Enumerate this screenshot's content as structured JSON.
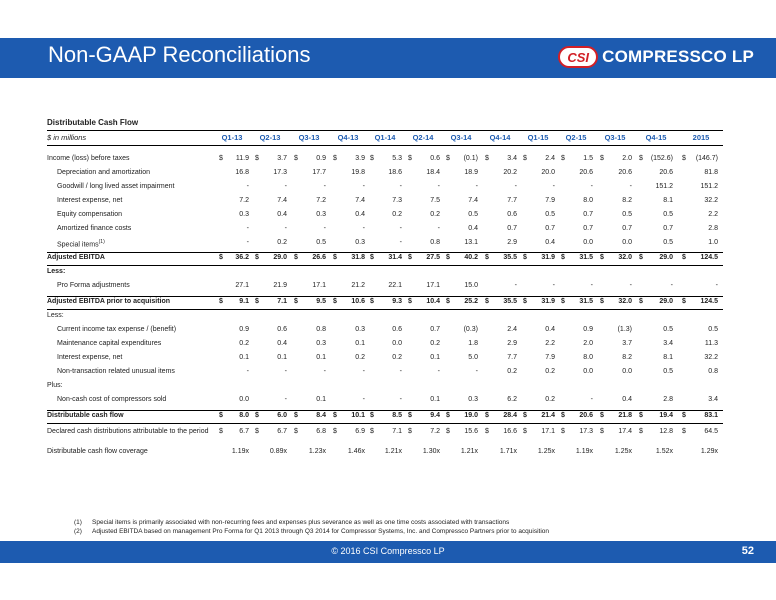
{
  "header": {
    "title": "Non-GAAP Reconciliations",
    "logo_badge": "CSI",
    "logo_name": "COMPRESSCO LP",
    "logo_tm": "LP"
  },
  "table": {
    "title": "Distributable Cash Flow",
    "unit": "$ in millions",
    "columns": [
      "Q1-13",
      "Q2-13",
      "Q3-13",
      "Q4-13",
      "Q1-14",
      "Q2-14",
      "Q3-14",
      "Q4-14",
      "Q1-15",
      "Q2-15",
      "Q3-15",
      "Q4-15",
      "2015"
    ],
    "rows": [
      {
        "label": "Income (loss) before taxes",
        "values": [
          "11.9",
          "3.7",
          "0.9",
          "3.9",
          "5.3",
          "0.6",
          "(0.1)",
          "3.4",
          "2.4",
          "1.5",
          "2.0",
          "(152.6)",
          "(146.7)"
        ],
        "dollar": true
      },
      {
        "label": "Depreciation and amortization",
        "values": [
          "16.8",
          "17.3",
          "17.7",
          "19.8",
          "18.6",
          "18.4",
          "18.9",
          "20.2",
          "20.0",
          "20.6",
          "20.6",
          "20.6",
          "81.8"
        ],
        "indent": true
      },
      {
        "label": "Goodwill / long lived asset impairment",
        "values": [
          "-",
          "-",
          "-",
          "-",
          "-",
          "-",
          "-",
          "-",
          "-",
          "-",
          "-",
          "151.2",
          "151.2"
        ],
        "indent": true
      },
      {
        "label": "Interest expense, net",
        "values": [
          "7.2",
          "7.4",
          "7.2",
          "7.4",
          "7.3",
          "7.5",
          "7.4",
          "7.7",
          "7.9",
          "8.0",
          "8.2",
          "8.1",
          "32.2"
        ],
        "indent": true
      },
      {
        "label": "Equity compensation",
        "values": [
          "0.3",
          "0.4",
          "0.3",
          "0.4",
          "0.2",
          "0.2",
          "0.5",
          "0.6",
          "0.5",
          "0.7",
          "0.5",
          "0.5",
          "2.2"
        ],
        "indent": true
      },
      {
        "label": "Amortized finance costs",
        "values": [
          "-",
          "-",
          "-",
          "-",
          "-",
          "-",
          "0.4",
          "0.7",
          "0.7",
          "0.7",
          "0.7",
          "0.7",
          "2.8"
        ],
        "indent": true
      },
      {
        "label": "Special items",
        "sup": "(1)",
        "values": [
          "-",
          "0.2",
          "0.5",
          "0.3",
          "-",
          "0.8",
          "13.1",
          "2.9",
          "0.4",
          "0.0",
          "0.0",
          "0.5",
          "1.0"
        ],
        "indent": true
      },
      {
        "label": "Adjusted EBITDA",
        "values": [
          "36.2",
          "29.0",
          "26.6",
          "31.8",
          "31.4",
          "27.5",
          "40.2",
          "35.5",
          "31.9",
          "31.5",
          "32.0",
          "29.0",
          "124.5"
        ],
        "dollar": true,
        "bold": true,
        "box": true
      },
      {
        "label": "Less:",
        "values": [],
        "bold": true
      },
      {
        "label": "Pro Forma adjustments",
        "values": [
          "27.1",
          "21.9",
          "17.1",
          "21.2",
          "22.1",
          "17.1",
          "15.0",
          "-",
          "-",
          "-",
          "-",
          "-",
          "-"
        ],
        "indent": true
      },
      {
        "label": "Adjusted EBITDA prior to acquisition",
        "values": [
          "9.1",
          "7.1",
          "9.5",
          "10.6",
          "9.3",
          "10.4",
          "25.2",
          "35.5",
          "31.9",
          "31.5",
          "32.0",
          "29.0",
          "124.5"
        ],
        "dollar": true,
        "bold": true,
        "box": true
      },
      {
        "label": "Less:",
        "values": []
      },
      {
        "label": "Current income tax expense / (benefit)",
        "values": [
          "0.9",
          "0.6",
          "0.8",
          "0.3",
          "0.6",
          "0.7",
          "(0.3)",
          "2.4",
          "0.4",
          "0.9",
          "(1.3)",
          "0.5",
          "0.5"
        ],
        "indent": true
      },
      {
        "label": "Maintenance capital expenditures",
        "values": [
          "0.2",
          "0.4",
          "0.3",
          "0.1",
          "0.0",
          "0.2",
          "1.8",
          "2.9",
          "2.2",
          "2.0",
          "3.7",
          "3.4",
          "11.3"
        ],
        "indent": true
      },
      {
        "label": "Interest expense, net",
        "values": [
          "0.1",
          "0.1",
          "0.1",
          "0.2",
          "0.2",
          "0.1",
          "5.0",
          "7.7",
          "7.9",
          "8.0",
          "8.2",
          "8.1",
          "32.2"
        ],
        "indent": true
      },
      {
        "label": "Non-transaction related unusual items",
        "values": [
          "-",
          "-",
          "-",
          "-",
          "-",
          "-",
          "-",
          "0.2",
          "0.2",
          "0.0",
          "0.0",
          "0.5",
          "0.8"
        ],
        "indent": true
      },
      {
        "label": "Plus:",
        "values": []
      },
      {
        "label": "Non-cash cost of compressors sold",
        "values": [
          "0.0",
          "-",
          "0.1",
          "-",
          "-",
          "0.1",
          "0.3",
          "6.2",
          "0.2",
          "-",
          "0.4",
          "2.8",
          "3.4"
        ],
        "indent": true
      },
      {
        "label": "Distributable cash flow",
        "values": [
          "8.0",
          "6.0",
          "8.4",
          "10.1",
          "8.5",
          "9.4",
          "19.0",
          "28.4",
          "21.4",
          "20.6",
          "21.8",
          "19.4",
          "83.1"
        ],
        "dollar": true,
        "bold": true,
        "box": true
      },
      {
        "label": "Declared cash distributions attributable to the period",
        "values": [
          "6.7",
          "6.7",
          "6.8",
          "6.9",
          "7.1",
          "7.2",
          "15.6",
          "16.6",
          "17.1",
          "17.3",
          "17.4",
          "12.8",
          "64.5"
        ],
        "dollar": true
      },
      {
        "label": "Distributable cash flow coverage",
        "values": [
          "1.19x",
          "0.89x",
          "1.23x",
          "1.46x",
          "1.21x",
          "1.30x",
          "1.21x",
          "1.71x",
          "1.25x",
          "1.19x",
          "1.25x",
          "1.52x",
          "1.29x"
        ]
      }
    ],
    "dollar_sign": "$"
  },
  "notes": [
    {
      "num": "(1)",
      "text": "Special items is primarily associated with non-recurring fees and expenses plus severance as well as one time costs associated with transactions"
    },
    {
      "num": "(2)",
      "text": "Adjusted EBITDA based on management Pro Forma for  Q1 2013 through Q3 2014 for Compressor Systems, Inc. and Compressco Partners prior to acquisition"
    }
  ],
  "footer": {
    "copyright": "© 2016 CSI Compressco LP",
    "page": "52"
  },
  "colors": {
    "brand_blue": "#1d5bb0",
    "brand_red": "#d21f26"
  }
}
